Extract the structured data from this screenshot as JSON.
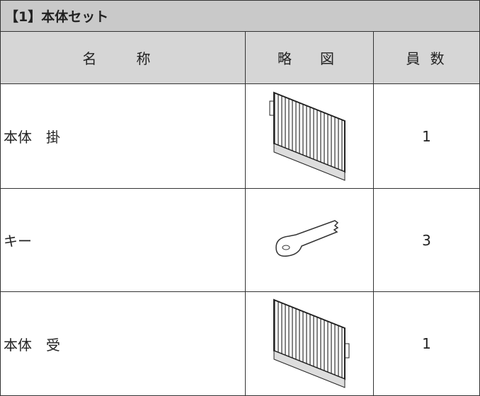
{
  "header": {
    "title": "【1】本体セット"
  },
  "table": {
    "columns": [
      "名　称",
      "略　図",
      "員 数"
    ],
    "rows": [
      [
        "本体　掛",
        1
      ],
      [
        "キー",
        3
      ],
      [
        "本体　受",
        1
      ]
    ]
  }
}
